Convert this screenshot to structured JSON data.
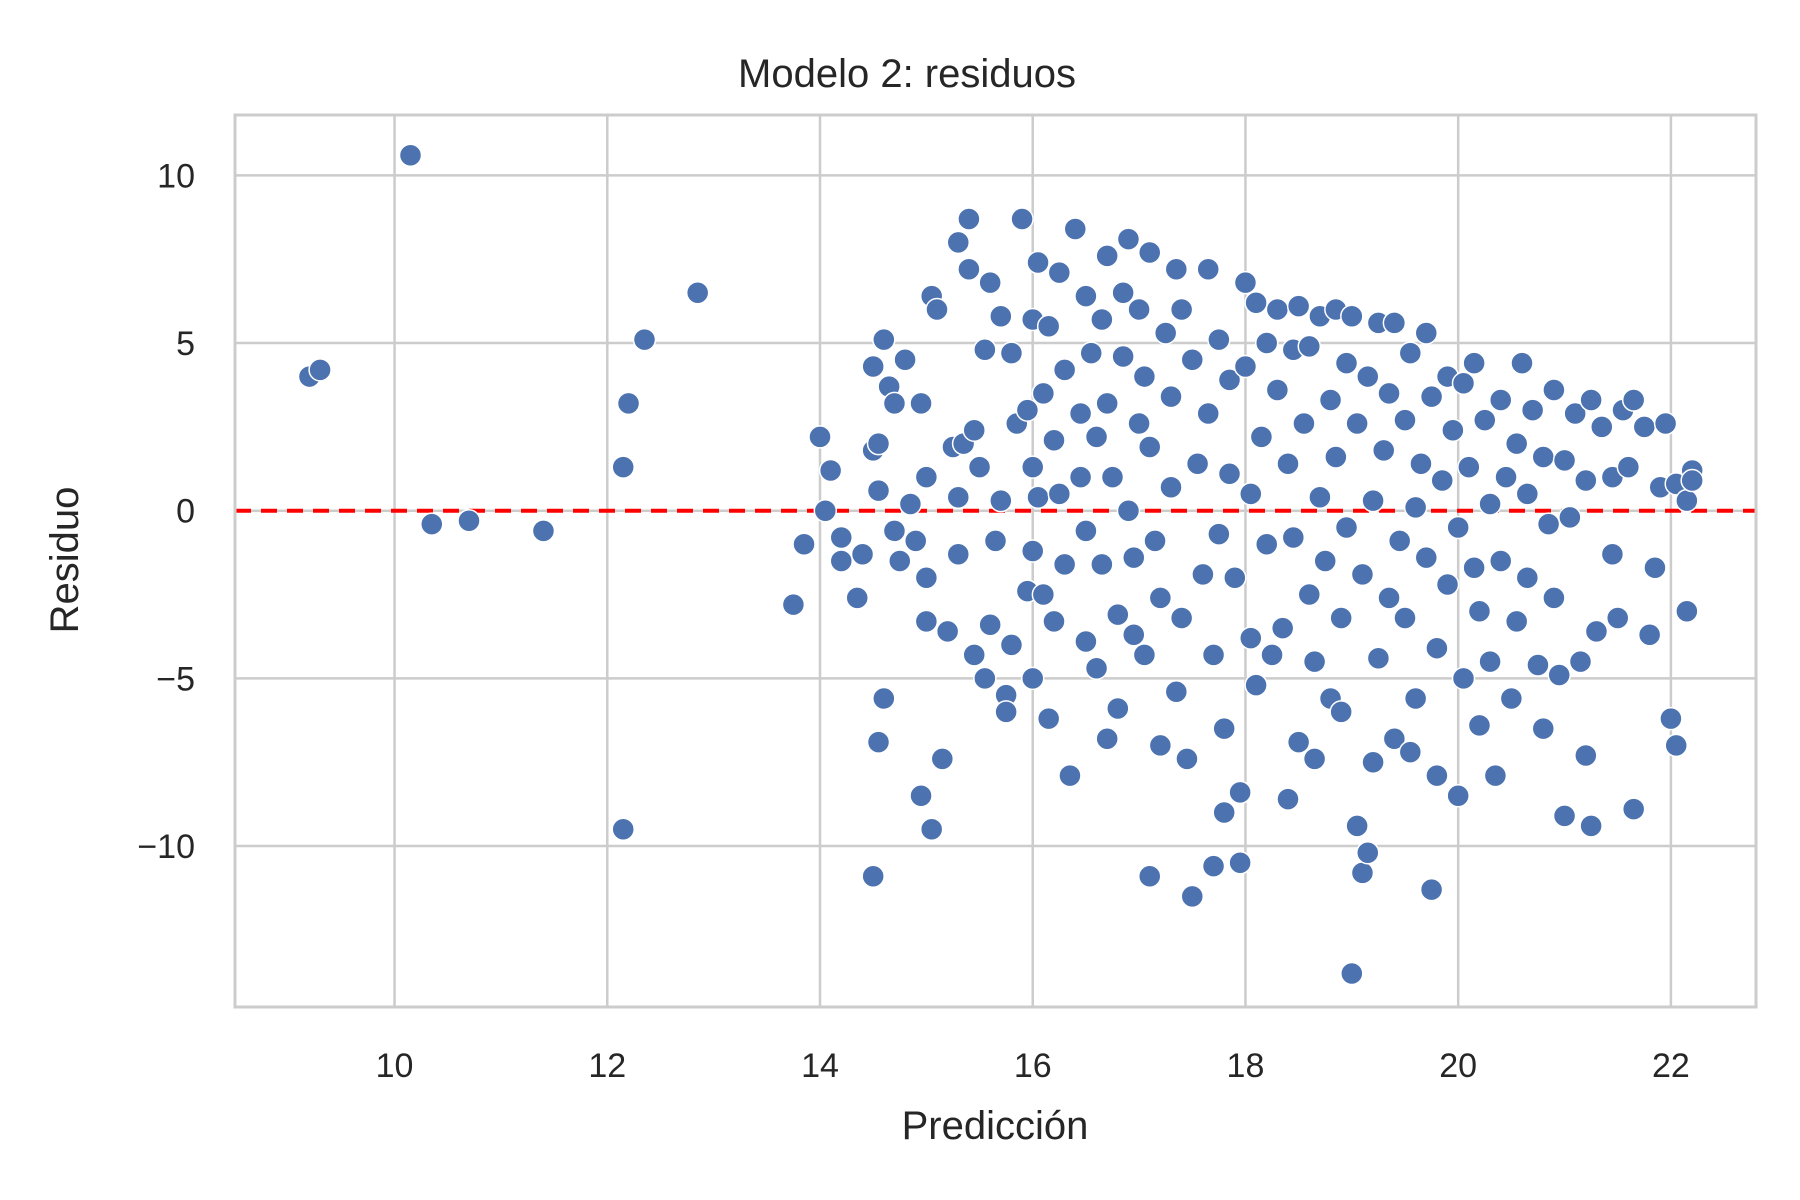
{
  "chart_data": {
    "type": "scatter",
    "title": "Modelo 2: residuos",
    "xlabel": "Predicción",
    "ylabel": "Residuo",
    "xlim": [
      8.5,
      22.8
    ],
    "ylim": [
      -14.8,
      11.8
    ],
    "xticks": [
      10,
      12,
      14,
      16,
      18,
      20,
      22
    ],
    "yticks": [
      10,
      5,
      0,
      -5,
      -10
    ],
    "ytick_labels": [
      "10",
      "5",
      "0",
      "−5",
      "−10"
    ],
    "grid": true,
    "reference_line": {
      "y": 0,
      "style": "dashed",
      "color": "#ff0000"
    },
    "point_color": "#4c72b0",
    "points": [
      [
        9.2,
        4.0
      ],
      [
        9.3,
        4.2
      ],
      [
        10.15,
        10.6
      ],
      [
        10.35,
        -0.4
      ],
      [
        10.7,
        -0.3
      ],
      [
        11.4,
        -0.6
      ],
      [
        12.15,
        1.3
      ],
      [
        12.2,
        3.2
      ],
      [
        12.35,
        5.1
      ],
      [
        12.15,
        -9.5
      ],
      [
        12.85,
        6.5
      ],
      [
        13.75,
        -2.8
      ],
      [
        13.85,
        -1.0
      ],
      [
        14.0,
        2.2
      ],
      [
        14.05,
        0.0
      ],
      [
        14.1,
        1.2
      ],
      [
        14.2,
        -0.8
      ],
      [
        14.2,
        -1.5
      ],
      [
        14.35,
        -2.6
      ],
      [
        14.4,
        -1.3
      ],
      [
        14.5,
        4.3
      ],
      [
        14.5,
        1.8
      ],
      [
        14.55,
        2.0
      ],
      [
        14.55,
        0.6
      ],
      [
        14.6,
        5.1
      ],
      [
        14.65,
        3.7
      ],
      [
        14.7,
        3.2
      ],
      [
        14.7,
        -0.6
      ],
      [
        14.75,
        -1.5
      ],
      [
        14.55,
        -6.9
      ],
      [
        14.6,
        -5.6
      ],
      [
        14.5,
        -10.9
      ],
      [
        14.8,
        4.5
      ],
      [
        14.85,
        0.2
      ],
      [
        14.9,
        -0.9
      ],
      [
        14.95,
        3.2
      ],
      [
        15.0,
        1.0
      ],
      [
        15.0,
        -2.0
      ],
      [
        15.0,
        -3.3
      ],
      [
        15.05,
        6.4
      ],
      [
        15.1,
        6.0
      ],
      [
        14.95,
        -8.5
      ],
      [
        15.05,
        -9.5
      ],
      [
        15.15,
        -7.4
      ],
      [
        15.2,
        -3.6
      ],
      [
        15.25,
        1.9
      ],
      [
        15.3,
        0.4
      ],
      [
        15.3,
        -1.3
      ],
      [
        15.3,
        8.0
      ],
      [
        15.35,
        2.0
      ],
      [
        15.4,
        8.7
      ],
      [
        15.4,
        7.2
      ],
      [
        15.45,
        2.4
      ],
      [
        15.45,
        -4.3
      ],
      [
        15.5,
        1.3
      ],
      [
        15.55,
        4.8
      ],
      [
        15.55,
        -5.0
      ],
      [
        15.6,
        6.8
      ],
      [
        15.6,
        -3.4
      ],
      [
        15.65,
        -0.9
      ],
      [
        15.7,
        5.8
      ],
      [
        15.7,
        0.3
      ],
      [
        15.75,
        -5.5
      ],
      [
        15.75,
        -6.0
      ],
      [
        15.8,
        4.7
      ],
      [
        15.8,
        -4.0
      ],
      [
        15.85,
        2.6
      ],
      [
        15.9,
        8.7
      ],
      [
        15.95,
        3.0
      ],
      [
        15.95,
        -2.4
      ],
      [
        16.0,
        5.7
      ],
      [
        16.0,
        1.3
      ],
      [
        16.0,
        -1.2
      ],
      [
        16.0,
        -5.0
      ],
      [
        16.05,
        7.4
      ],
      [
        16.05,
        0.4
      ],
      [
        16.1,
        3.5
      ],
      [
        16.1,
        -2.5
      ],
      [
        16.15,
        5.5
      ],
      [
        16.15,
        -6.2
      ],
      [
        16.2,
        2.1
      ],
      [
        16.2,
        -3.3
      ],
      [
        16.25,
        7.1
      ],
      [
        16.25,
        0.5
      ],
      [
        16.3,
        4.2
      ],
      [
        16.3,
        -1.6
      ],
      [
        16.35,
        -7.9
      ],
      [
        16.4,
        8.4
      ],
      [
        16.45,
        2.9
      ],
      [
        16.45,
        1.0
      ],
      [
        16.5,
        6.4
      ],
      [
        16.5,
        -0.6
      ],
      [
        16.5,
        -3.9
      ],
      [
        16.55,
        4.7
      ],
      [
        16.6,
        2.2
      ],
      [
        16.6,
        -4.7
      ],
      [
        16.65,
        5.7
      ],
      [
        16.65,
        -1.6
      ],
      [
        16.7,
        7.6
      ],
      [
        16.7,
        3.2
      ],
      [
        16.7,
        -6.8
      ],
      [
        16.75,
        1.0
      ],
      [
        16.8,
        -5.9
      ],
      [
        16.8,
        -3.1
      ],
      [
        16.85,
        6.5
      ],
      [
        16.85,
        4.6
      ],
      [
        16.9,
        8.1
      ],
      [
        16.9,
        0.0
      ],
      [
        16.95,
        -1.4
      ],
      [
        16.95,
        -3.7
      ],
      [
        17.0,
        6.0
      ],
      [
        17.0,
        2.6
      ],
      [
        17.05,
        4.0
      ],
      [
        17.05,
        -4.3
      ],
      [
        17.1,
        7.7
      ],
      [
        17.1,
        1.9
      ],
      [
        17.1,
        -10.9
      ],
      [
        17.15,
        -0.9
      ],
      [
        17.2,
        -7.0
      ],
      [
        17.2,
        -2.6
      ],
      [
        17.25,
        5.3
      ],
      [
        17.3,
        3.4
      ],
      [
        17.3,
        0.7
      ],
      [
        17.35,
        7.2
      ],
      [
        17.35,
        -5.4
      ],
      [
        17.4,
        6.0
      ],
      [
        17.4,
        -3.2
      ],
      [
        17.45,
        -7.4
      ],
      [
        17.5,
        4.5
      ],
      [
        17.5,
        -11.5
      ],
      [
        17.55,
        1.4
      ],
      [
        17.6,
        -1.9
      ],
      [
        17.65,
        7.2
      ],
      [
        17.65,
        2.9
      ],
      [
        17.7,
        -10.6
      ],
      [
        17.7,
        -4.3
      ],
      [
        17.75,
        5.1
      ],
      [
        17.75,
        -0.7
      ],
      [
        17.8,
        -9.0
      ],
      [
        17.8,
        -6.5
      ],
      [
        17.85,
        3.9
      ],
      [
        17.85,
        1.1
      ],
      [
        17.9,
        -2.0
      ],
      [
        17.95,
        -10.5
      ],
      [
        17.95,
        -8.4
      ],
      [
        18.0,
        6.8
      ],
      [
        18.0,
        4.3
      ],
      [
        18.05,
        0.5
      ],
      [
        18.05,
        -3.8
      ],
      [
        18.1,
        6.2
      ],
      [
        18.1,
        -5.2
      ],
      [
        18.15,
        2.2
      ],
      [
        18.2,
        -1.0
      ],
      [
        18.2,
        5.0
      ],
      [
        18.25,
        -4.3
      ],
      [
        18.3,
        3.6
      ],
      [
        18.3,
        6.0
      ],
      [
        18.35,
        -3.5
      ],
      [
        18.4,
        1.4
      ],
      [
        18.4,
        -8.6
      ],
      [
        18.45,
        4.8
      ],
      [
        18.45,
        -0.8
      ],
      [
        18.5,
        6.1
      ],
      [
        18.5,
        -6.9
      ],
      [
        18.55,
        2.6
      ],
      [
        18.6,
        -2.5
      ],
      [
        18.6,
        4.9
      ],
      [
        18.65,
        -4.5
      ],
      [
        18.65,
        -7.4
      ],
      [
        18.7,
        0.4
      ],
      [
        18.7,
        5.8
      ],
      [
        18.75,
        -1.5
      ],
      [
        18.8,
        3.3
      ],
      [
        18.8,
        -5.6
      ],
      [
        18.85,
        6.0
      ],
      [
        18.85,
        1.6
      ],
      [
        18.9,
        -6.0
      ],
      [
        18.9,
        -3.2
      ],
      [
        18.95,
        4.4
      ],
      [
        18.95,
        -0.5
      ],
      [
        19.0,
        5.8
      ],
      [
        19.0,
        -13.8
      ],
      [
        19.05,
        2.6
      ],
      [
        19.05,
        -9.4
      ],
      [
        19.1,
        -1.9
      ],
      [
        19.1,
        -10.8
      ],
      [
        19.15,
        4.0
      ],
      [
        19.15,
        -10.2
      ],
      [
        19.2,
        0.3
      ],
      [
        19.2,
        -7.5
      ],
      [
        19.25,
        5.6
      ],
      [
        19.25,
        -4.4
      ],
      [
        19.3,
        1.8
      ],
      [
        19.35,
        -2.6
      ],
      [
        19.35,
        3.5
      ],
      [
        19.4,
        5.6
      ],
      [
        19.4,
        -6.8
      ],
      [
        19.45,
        -0.9
      ],
      [
        19.5,
        2.7
      ],
      [
        19.5,
        -3.2
      ],
      [
        19.55,
        4.7
      ],
      [
        19.55,
        -7.2
      ],
      [
        19.6,
        0.1
      ],
      [
        19.6,
        -5.6
      ],
      [
        19.65,
        1.4
      ],
      [
        19.7,
        5.3
      ],
      [
        19.7,
        -1.4
      ],
      [
        19.75,
        3.4
      ],
      [
        19.75,
        -11.3
      ],
      [
        19.8,
        -4.1
      ],
      [
        19.8,
        -7.9
      ],
      [
        19.85,
        0.9
      ],
      [
        19.9,
        4.0
      ],
      [
        19.9,
        -2.2
      ],
      [
        19.95,
        2.4
      ],
      [
        20.0,
        -0.5
      ],
      [
        20.0,
        -8.5
      ],
      [
        20.05,
        3.8
      ],
      [
        20.05,
        -5.0
      ],
      [
        20.1,
        1.3
      ],
      [
        20.15,
        4.4
      ],
      [
        20.15,
        -1.7
      ],
      [
        20.2,
        -3.0
      ],
      [
        20.2,
        -6.4
      ],
      [
        20.25,
        2.7
      ],
      [
        20.3,
        0.2
      ],
      [
        20.3,
        -4.5
      ],
      [
        20.35,
        -7.9
      ],
      [
        20.4,
        3.3
      ],
      [
        20.4,
        -1.5
      ],
      [
        20.45,
        1.0
      ],
      [
        20.5,
        -5.6
      ],
      [
        20.55,
        2.0
      ],
      [
        20.55,
        -3.3
      ],
      [
        20.6,
        4.4
      ],
      [
        20.65,
        0.5
      ],
      [
        20.65,
        -2.0
      ],
      [
        20.7,
        3.0
      ],
      [
        20.75,
        -4.6
      ],
      [
        20.8,
        1.6
      ],
      [
        20.8,
        -6.5
      ],
      [
        20.85,
        -0.4
      ],
      [
        20.9,
        3.6
      ],
      [
        20.9,
        -2.6
      ],
      [
        20.95,
        -4.9
      ],
      [
        21.0,
        1.5
      ],
      [
        21.0,
        -9.1
      ],
      [
        21.05,
        -0.2
      ],
      [
        21.1,
        2.9
      ],
      [
        21.15,
        -4.5
      ],
      [
        21.2,
        0.9
      ],
      [
        21.2,
        -7.3
      ],
      [
        21.25,
        3.3
      ],
      [
        21.25,
        -9.4
      ],
      [
        21.3,
        -3.6
      ],
      [
        21.35,
        2.5
      ],
      [
        21.45,
        -1.3
      ],
      [
        21.45,
        1.0
      ],
      [
        21.5,
        -3.2
      ],
      [
        21.55,
        3.0
      ],
      [
        21.6,
        1.3
      ],
      [
        21.65,
        3.3
      ],
      [
        21.65,
        -8.9
      ],
      [
        21.75,
        2.5
      ],
      [
        21.8,
        -3.7
      ],
      [
        21.85,
        -1.7
      ],
      [
        21.9,
        0.7
      ],
      [
        21.95,
        2.6
      ],
      [
        22.0,
        -6.2
      ],
      [
        22.05,
        0.8
      ],
      [
        22.05,
        -7.0
      ],
      [
        22.15,
        0.3
      ],
      [
        22.2,
        1.2
      ],
      [
        22.2,
        0.9
      ],
      [
        22.15,
        -3.0
      ]
    ]
  }
}
